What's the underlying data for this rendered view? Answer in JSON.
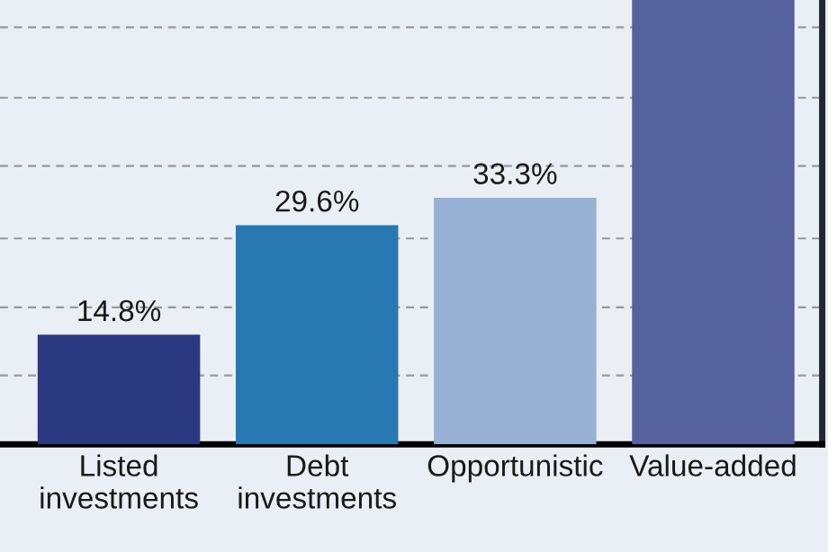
{
  "chart_data": {
    "type": "bar",
    "categories": [
      "Listed\ninvestments",
      "Debt\ninvestments",
      "Opportunistic",
      "Value-added"
    ],
    "values": [
      14.8,
      29.6,
      33.3,
      60
    ],
    "colors": [
      "#2b3a80",
      "#2878b2",
      "#96b1d3",
      "#56629e"
    ],
    "value_labels": [
      "14.8%",
      "29.6%",
      "33.3%",
      null
    ],
    "ylim": [
      0,
      60
    ],
    "yticks": [
      {
        "value": 9.3,
        "label": null
      },
      {
        "value": 18.5,
        "label": null
      },
      {
        "value": 27.8,
        "label": null
      },
      {
        "value": 37.6,
        "label": null
      },
      {
        "value": 46.8,
        "label": null
      },
      {
        "value": 56.3,
        "label": null
      }
    ],
    "grid": "y",
    "tick_labels": "x"
  }
}
